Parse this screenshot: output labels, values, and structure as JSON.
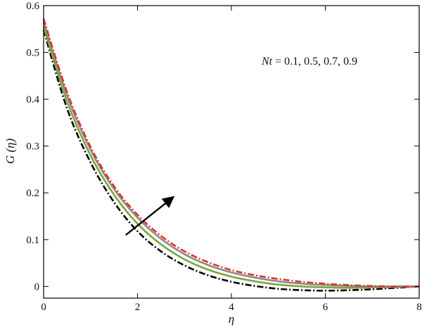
{
  "chart_data": {
    "type": "line",
    "title": "",
    "xlabel": "η",
    "ylabel": "G (η)",
    "xlim": [
      0,
      8
    ],
    "ylim": [
      -0.025,
      0.6
    ],
    "x_ticks": [
      0,
      2,
      4,
      6,
      8
    ],
    "y_ticks": [
      0,
      0.1,
      0.2,
      0.3,
      0.4,
      0.5,
      0.6
    ],
    "x_tick_labels": [
      "0",
      "2",
      "4",
      "6",
      "8"
    ],
    "y_tick_labels": [
      "0",
      "0.1",
      "0.2",
      "0.3",
      "0.4",
      "0.5",
      "0.6"
    ],
    "grid": false,
    "legend": "none",
    "annotation": {
      "var": "Nt",
      "text": " = 0.1, 0.5, 0.7, 0.9",
      "arrow_from": [
        1.75,
        0.11
      ],
      "arrow_to": [
        2.75,
        0.19
      ]
    },
    "x": [
      0,
      0.5,
      1,
      1.5,
      2,
      2.5,
      3,
      3.5,
      4,
      4.5,
      5,
      5.5,
      6,
      6.5,
      7,
      7.5,
      8
    ],
    "series": [
      {
        "color": "#000000",
        "dash": "dashdot",
        "values": [
          0.548,
          0.38,
          0.265,
          0.18,
          0.118,
          0.075,
          0.045,
          0.024,
          0.01,
          0.001,
          -0.005,
          -0.008,
          -0.009,
          -0.008,
          -0.006,
          -0.003,
          0
        ]
      },
      {
        "color": "#7aa63c",
        "dash": "solid",
        "values": [
          0.555,
          0.395,
          0.28,
          0.196,
          0.134,
          0.09,
          0.058,
          0.036,
          0.021,
          0.011,
          0.004,
          0,
          -0.002,
          -0.003,
          -0.002,
          -0.001,
          0
        ]
      },
      {
        "color": "#8a8a8a",
        "dash": "solid",
        "values": [
          0.565,
          0.408,
          0.292,
          0.208,
          0.147,
          0.102,
          0.069,
          0.046,
          0.03,
          0.019,
          0.011,
          0.006,
          0.003,
          0.001,
          0,
          0,
          0
        ]
      },
      {
        "color": "#e0342a",
        "dash": "dashdot",
        "values": [
          0.572,
          0.415,
          0.298,
          0.214,
          0.153,
          0.108,
          0.075,
          0.052,
          0.035,
          0.024,
          0.016,
          0.01,
          0.006,
          0.003,
          0.001,
          0,
          0
        ]
      }
    ]
  }
}
